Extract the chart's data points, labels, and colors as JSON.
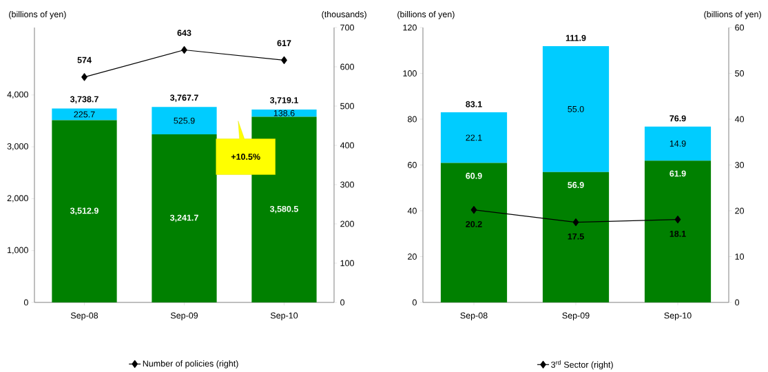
{
  "chart_data": [
    {
      "type": "bar",
      "stacked": true,
      "categories": [
        "Sep-08",
        "Sep-09",
        "Sep-10"
      ],
      "ylabel": "(billions of yen)",
      "y2label": "(thousands)",
      "ylim": [
        0,
        5300
      ],
      "yticks": [
        0,
        {
          "value": 1000,
          "label": "1,000"
        },
        {
          "value": 2000,
          "label": "2,000"
        },
        {
          "value": 3000,
          "label": "3,000"
        },
        {
          "value": 4000,
          "label": "4,000"
        }
      ],
      "y2lim": [
        0,
        700
      ],
      "y2ticks": [
        0,
        100,
        200,
        300,
        400,
        500,
        600,
        700
      ],
      "series": [
        {
          "color": "#008000",
          "values": [
            3512.9,
            3241.7,
            3580.5
          ],
          "value_labels": [
            "3,512.9",
            "3,241.7",
            "3,580.5"
          ]
        },
        {
          "color": "#00ccff",
          "values": [
            225.7,
            525.9,
            138.6
          ],
          "value_labels": [
            "225.7",
            "525.9",
            "138.6"
          ]
        },
        {
          "type": "line",
          "axis": "y2",
          "name": "Number of policies (right)",
          "color": "#000000",
          "marker": "diamond",
          "values": [
            574,
            643,
            617
          ],
          "value_labels": [
            "574",
            "643",
            "617"
          ]
        }
      ],
      "totals": [
        "3,738.7",
        "3,767.7",
        "3,719.1"
      ],
      "annotations": [
        "+10.5%"
      ],
      "legend": "bottom"
    },
    {
      "type": "bar",
      "stacked": true,
      "categories": [
        "Sep-08",
        "Sep-09",
        "Sep-10"
      ],
      "ylabel": "(billions of yen)",
      "y2label": "(billions of yen)",
      "ylim": [
        0,
        120
      ],
      "yticks": [
        0,
        20,
        40,
        60,
        80,
        100,
        120
      ],
      "y2lim": [
        0,
        60
      ],
      "y2ticks": [
        0,
        10,
        20,
        30,
        40,
        50,
        60
      ],
      "series": [
        {
          "color": "#008000",
          "values": [
            60.9,
            56.9,
            61.9
          ],
          "value_labels": [
            "60.9",
            "56.9",
            "61.9"
          ]
        },
        {
          "color": "#00ccff",
          "values": [
            22.1,
            55.0,
            14.9
          ],
          "value_labels": [
            "22.1",
            "55.0",
            "14.9"
          ]
        },
        {
          "type": "line",
          "axis": "y2",
          "name": "3$^{rd}$ Sector (right)",
          "color": "#000000",
          "marker": "diamond",
          "values": [
            20.2,
            17.5,
            18.1
          ],
          "value_labels": [
            "20.2",
            "17.5",
            "18.1"
          ]
        }
      ],
      "totals": [
        "83.1",
        "111.9",
        "76.9"
      ],
      "legend": "bottom"
    }
  ]
}
